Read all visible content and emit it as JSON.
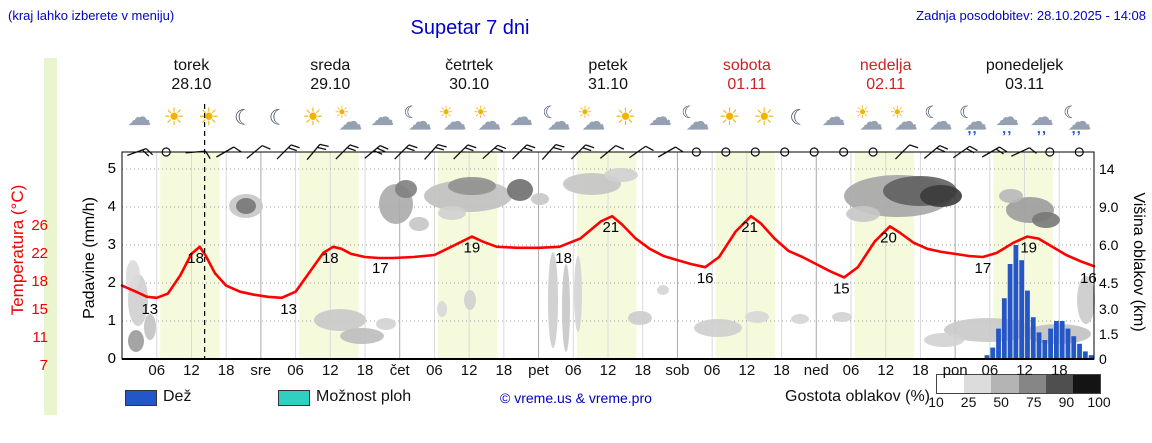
{
  "header": {
    "hint": "(kraj lahko izberete v meniju)",
    "title": "Supetar 7 dni",
    "updated": "Zadnja posodobitev: 28.10.2025 - 14:08"
  },
  "axes": {
    "temp_label": "Temperatura (°C)",
    "precip_label": "Padavine (mm/h)",
    "cloud_label": "Višina oblakov (km)",
    "temp_ticks": [
      "26",
      "22",
      "18",
      "15",
      "11",
      "7"
    ],
    "precip_ticks": [
      "5",
      "4",
      "3",
      "2",
      "1",
      "0"
    ],
    "cloud_ticks": [
      "14",
      "9.0",
      "6.0",
      "4.5",
      "3.0",
      "1.5",
      "0"
    ]
  },
  "days": [
    {
      "name": "torek",
      "date": "28.10",
      "color": "#111111",
      "icons": [
        "cloud",
        "sun",
        "sun",
        "moon"
      ]
    },
    {
      "name": "sreda",
      "date": "29.10",
      "color": "#111111",
      "icons": [
        "moon",
        "sun",
        "suncloud",
        "cloud"
      ]
    },
    {
      "name": "četrtek",
      "date": "30.10",
      "color": "#111111",
      "icons": [
        "cloudmoon",
        "suncloud",
        "suncloud",
        "cloud"
      ]
    },
    {
      "name": "petek",
      "date": "31.10",
      "color": "#111111",
      "icons": [
        "cloudmoon",
        "suncloud",
        "sun",
        "cloud"
      ]
    },
    {
      "name": "sobota",
      "date": "01.11",
      "color": "#cc2222",
      "icons": [
        "cloudmoon",
        "sun",
        "sun",
        "moon"
      ]
    },
    {
      "name": "nedelja",
      "date": "02.11",
      "color": "#cc2222",
      "icons": [
        "cloud",
        "suncloud",
        "suncloud",
        "cloudmoon"
      ]
    },
    {
      "name": "ponedeljek",
      "date": "03.11",
      "color": "#111111",
      "icons": [
        "raincloudmoon",
        "raincloud",
        "raincloud",
        "raincloudmoon"
      ]
    }
  ],
  "x_axis": {
    "hour_labels": [
      "06",
      "12",
      "18"
    ],
    "boundary_labels": [
      "sre",
      "čet",
      "pet",
      "sob",
      "ned",
      "pon"
    ]
  },
  "legend": {
    "rain_label": "Dež",
    "rain_color": "#2456c8",
    "showers_label": "Možnost ploh",
    "showers_color": "#2fd0c0",
    "copyright": "© vreme.us & vreme.pro",
    "cloud_density_label": "Gostota oblakov (%)",
    "cloud_density_ticks": [
      "10",
      "25",
      "50",
      "75",
      "90",
      "100"
    ],
    "cloud_density_colors": [
      "#ffffff",
      "#dcdcdc",
      "#b4b4b4",
      "#868686",
      "#4f4f4f",
      "#141414"
    ]
  },
  "chart_data": {
    "type": "meteogram",
    "x_range_days": 7,
    "precip_axis_mm_h": {
      "min": 0,
      "max": 5
    },
    "temp_axis_c": {
      "ticks": [
        26,
        22,
        18,
        15,
        11,
        7
      ]
    },
    "cloud_height_axis_km": {
      "ticks": [
        14,
        9.0,
        6.0,
        4.5,
        3.0,
        1.5,
        0
      ]
    },
    "temperature_series": [
      [
        0,
        14.2
      ],
      [
        0.1,
        13.6
      ],
      [
        0.18,
        13.1
      ],
      [
        0.25,
        13.0
      ],
      [
        0.33,
        13.4
      ],
      [
        0.42,
        15.2
      ],
      [
        0.5,
        17.3
      ],
      [
        0.56,
        18.0
      ],
      [
        0.6,
        17.2
      ],
      [
        0.67,
        15.4
      ],
      [
        0.75,
        14.2
      ],
      [
        0.85,
        13.6
      ],
      [
        0.95,
        13.3
      ],
      [
        1.05,
        13.1
      ],
      [
        1.15,
        13.0
      ],
      [
        1.25,
        13.6
      ],
      [
        1.35,
        15.5
      ],
      [
        1.45,
        17.4
      ],
      [
        1.52,
        18.0
      ],
      [
        1.58,
        17.8
      ],
      [
        1.65,
        17.3
      ],
      [
        1.75,
        17.0
      ],
      [
        1.85,
        16.9
      ],
      [
        1.95,
        16.9
      ],
      [
        2.1,
        17.0
      ],
      [
        2.25,
        17.2
      ],
      [
        2.4,
        18.2
      ],
      [
        2.52,
        19.0
      ],
      [
        2.6,
        18.5
      ],
      [
        2.7,
        18.0
      ],
      [
        2.85,
        17.9
      ],
      [
        3.0,
        17.9
      ],
      [
        3.15,
        18.0
      ],
      [
        3.3,
        18.8
      ],
      [
        3.45,
        20.5
      ],
      [
        3.53,
        21.0
      ],
      [
        3.6,
        20.2
      ],
      [
        3.7,
        18.8
      ],
      [
        3.8,
        17.8
      ],
      [
        3.9,
        17.1
      ],
      [
        4.0,
        16.7
      ],
      [
        4.1,
        16.3
      ],
      [
        4.2,
        16.0
      ],
      [
        4.3,
        17.0
      ],
      [
        4.42,
        19.5
      ],
      [
        4.53,
        21.0
      ],
      [
        4.6,
        20.3
      ],
      [
        4.7,
        18.8
      ],
      [
        4.8,
        17.6
      ],
      [
        4.9,
        17.0
      ],
      [
        5.0,
        16.3
      ],
      [
        5.1,
        15.6
      ],
      [
        5.2,
        15.0
      ],
      [
        5.3,
        16.0
      ],
      [
        5.42,
        18.5
      ],
      [
        5.53,
        20.0
      ],
      [
        5.6,
        19.4
      ],
      [
        5.7,
        18.4
      ],
      [
        5.8,
        17.8
      ],
      [
        5.9,
        17.5
      ],
      [
        6.0,
        17.3
      ],
      [
        6.1,
        17.1
      ],
      [
        6.2,
        17.0
      ],
      [
        6.3,
        17.4
      ],
      [
        6.42,
        18.4
      ],
      [
        6.52,
        19.0
      ],
      [
        6.6,
        18.8
      ],
      [
        6.7,
        18.0
      ],
      [
        6.8,
        17.2
      ],
      [
        6.9,
        16.6
      ],
      [
        7.0,
        16.1
      ]
    ],
    "temperature_labels": [
      {
        "t": 0.2,
        "v": 13
      },
      {
        "t": 0.53,
        "v": 18
      },
      {
        "t": 1.2,
        "v": 13
      },
      {
        "t": 1.5,
        "v": 18
      },
      {
        "t": 1.86,
        "v": 17
      },
      {
        "t": 2.52,
        "v": 19
      },
      {
        "t": 3.18,
        "v": 18
      },
      {
        "t": 3.52,
        "v": 21
      },
      {
        "t": 4.2,
        "v": 16
      },
      {
        "t": 4.52,
        "v": 21
      },
      {
        "t": 5.18,
        "v": 15
      },
      {
        "t": 5.52,
        "v": 20
      },
      {
        "t": 6.2,
        "v": 17
      },
      {
        "t": 6.53,
        "v": 19
      },
      {
        "t": 6.96,
        "v": 16
      }
    ],
    "precip_bars_mm_h": [
      {
        "day": 6,
        "hour": 5,
        "v": 0.1
      },
      {
        "day": 6,
        "hour": 6,
        "v": 0.3
      },
      {
        "day": 6,
        "hour": 7,
        "v": 0.8
      },
      {
        "day": 6,
        "hour": 8,
        "v": 1.6
      },
      {
        "day": 6,
        "hour": 9,
        "v": 2.5
      },
      {
        "day": 6,
        "hour": 10,
        "v": 3.0
      },
      {
        "day": 6,
        "hour": 11,
        "v": 2.6
      },
      {
        "day": 6,
        "hour": 12,
        "v": 1.8
      },
      {
        "day": 6,
        "hour": 13,
        "v": 1.1
      },
      {
        "day": 6,
        "hour": 14,
        "v": 0.7
      },
      {
        "day": 6,
        "hour": 15,
        "v": 0.5
      },
      {
        "day": 6,
        "hour": 16,
        "v": 0.8
      },
      {
        "day": 6,
        "hour": 17,
        "v": 1.0
      },
      {
        "day": 6,
        "hour": 18,
        "v": 1.0
      },
      {
        "day": 6,
        "hour": 19,
        "v": 0.8
      },
      {
        "day": 6,
        "hour": 20,
        "v": 0.6
      },
      {
        "day": 6,
        "hour": 21,
        "v": 0.4
      },
      {
        "day": 6,
        "hour": 22,
        "v": 0.2
      },
      {
        "day": 6,
        "hour": 23,
        "v": 0.1
      }
    ],
    "wind_barbs": [
      {
        "a": 70,
        "t": 2
      },
      {
        "calm": true
      },
      {
        "a": 85,
        "t": 1
      },
      {
        "a": 60,
        "t": 1
      },
      {
        "a": 50,
        "t": 1
      },
      {
        "a": 45,
        "t": 2
      },
      {
        "a": 40,
        "t": 2
      },
      {
        "a": 45,
        "t": 2
      },
      {
        "a": 50,
        "t": 3
      },
      {
        "a": 45,
        "t": 2
      },
      {
        "a": 42,
        "t": 2
      },
      {
        "a": 45,
        "t": 2
      },
      {
        "a": 48,
        "t": 2
      },
      {
        "a": 45,
        "t": 2
      },
      {
        "a": 42,
        "t": 2
      },
      {
        "a": 45,
        "t": 2
      },
      {
        "a": 50,
        "t": 1
      },
      {
        "a": 55,
        "t": 1
      },
      {
        "a": 60,
        "t": 1
      },
      {
        "calm": true
      },
      {
        "calm": true
      },
      {
        "calm": true
      },
      {
        "calm": true
      },
      {
        "calm": true
      },
      {
        "calm": true
      },
      {
        "calm": true
      },
      {
        "a": 45,
        "t": 1
      },
      {
        "a": 50,
        "t": 2
      },
      {
        "a": 55,
        "t": 2
      },
      {
        "a": 60,
        "t": 2
      },
      {
        "a": 65,
        "t": 1
      },
      {
        "calm": true
      },
      {
        "calm": true
      }
    ],
    "cloud_blobs": [
      [
        138,
        300,
        10,
        26,
        "#cfcfcf"
      ],
      [
        133,
        276,
        7,
        16,
        "#dadada"
      ],
      [
        136,
        341,
        8,
        11,
        "#9a9a9a"
      ],
      [
        150,
        327,
        6,
        13,
        "#c2c2c2"
      ],
      [
        246,
        206,
        17,
        12,
        "#c6c6c6"
      ],
      [
        246,
        206,
        10,
        8,
        "#777777"
      ],
      [
        340,
        320,
        26,
        11,
        "#c9c9c9"
      ],
      [
        362,
        336,
        22,
        8,
        "#bcbcbc"
      ],
      [
        386,
        324,
        10,
        6,
        "#d2d2d2"
      ],
      [
        396,
        204,
        17,
        20,
        "#ababab"
      ],
      [
        406,
        189,
        11,
        9,
        "#808080"
      ],
      [
        419,
        224,
        10,
        7,
        "#c5c5c5"
      ],
      [
        468,
        196,
        44,
        16,
        "#c0c0c0"
      ],
      [
        472,
        186,
        24,
        9,
        "#909090"
      ],
      [
        452,
        213,
        14,
        7,
        "#d0d0d0"
      ],
      [
        520,
        190,
        13,
        11,
        "#6e6e6e"
      ],
      [
        540,
        199,
        9,
        6,
        "#c8c8c8"
      ],
      [
        470,
        300,
        6,
        10,
        "#d0d0d0"
      ],
      [
        442,
        309,
        5,
        8,
        "#d8d8d8"
      ],
      [
        553,
        300,
        5,
        48,
        "#cdcdcd"
      ],
      [
        566,
        308,
        4,
        44,
        "#c6c6c6"
      ],
      [
        578,
        294,
        4,
        38,
        "#d4d4d4"
      ],
      [
        592,
        184,
        29,
        11,
        "#c4c4c4"
      ],
      [
        621,
        175,
        17,
        7,
        "#d0d0d0"
      ],
      [
        640,
        318,
        12,
        7,
        "#cccccc"
      ],
      [
        663,
        290,
        6,
        5,
        "#d5d5d5"
      ],
      [
        718,
        328,
        24,
        9,
        "#cecece"
      ],
      [
        757,
        317,
        12,
        6,
        "#d7d7d7"
      ],
      [
        800,
        319,
        9,
        5,
        "#d5d5d5"
      ],
      [
        842,
        317,
        10,
        5,
        "#d1d1d1"
      ],
      [
        898,
        196,
        54,
        21,
        "#a6a6a6"
      ],
      [
        920,
        191,
        37,
        15,
        "#606060"
      ],
      [
        941,
        196,
        21,
        11,
        "#3b3b3b"
      ],
      [
        863,
        214,
        17,
        8,
        "#c6c6c6"
      ],
      [
        1030,
        210,
        24,
        13,
        "#9c9c9c"
      ],
      [
        1046,
        220,
        14,
        8,
        "#787878"
      ],
      [
        1011,
        196,
        12,
        7,
        "#b8b8b8"
      ],
      [
        988,
        330,
        44,
        12,
        "#c9c9c9"
      ],
      [
        1058,
        334,
        33,
        10,
        "#c1c1c1"
      ],
      [
        944,
        340,
        20,
        7,
        "#d2d2d2"
      ],
      [
        1086,
        300,
        9,
        24,
        "#cbcbcb"
      ]
    ],
    "daylight": {
      "start_hour": 6.6,
      "end_hour": 16.9
    },
    "now_time_days": 0.595,
    "colors": {
      "temp_curve": "#ff0000",
      "rain_bar": "#2456c8",
      "daylight_band": "#f6fadc",
      "grid_dotted": "#999999",
      "grid_vertical": "#d9d9d9",
      "grid_midnight": "#aaaaaa"
    }
  }
}
